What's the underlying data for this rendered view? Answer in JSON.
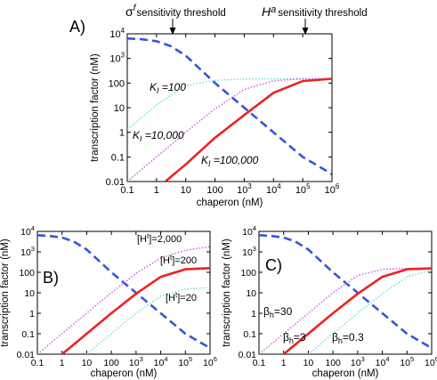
{
  "header": {
    "sigma_symbol": "σ",
    "sigma_sup": "f",
    "sigma_text": "sensitivity threshold",
    "h_symbol": "H",
    "h_sup": "a",
    "h_text": "sensitivity threshold"
  },
  "chart_data": [
    {
      "panel": "A)",
      "type": "line",
      "xscale": "log",
      "yscale": "log",
      "xlim": [
        0.1,
        1000000
      ],
      "ylim": [
        0.01,
        10000
      ],
      "xlabel": "chaperon (nM)",
      "ylabel": "transcription factor (nM)",
      "xticks": [
        "0.1",
        "1",
        "10",
        "100",
        "10^3",
        "10^4",
        "10^5",
        "10^6"
      ],
      "yticks": [
        "0.01",
        "0.1",
        "1",
        "10",
        "100",
        "10^3",
        "10^4"
      ],
      "series": [
        {
          "style": "dashed",
          "color": "#3355dd",
          "x": [
            0.1,
            0.3,
            1,
            3,
            10,
            100,
            1000,
            10000,
            100000,
            1000000
          ],
          "y": [
            6500,
            6000,
            5000,
            3200,
            1300,
            100,
            10,
            1,
            0.1,
            0.02
          ]
        },
        {
          "style": "dotted",
          "color": "#66e0d8",
          "x": [
            0.1,
            1,
            10,
            100,
            1000,
            10000,
            100000,
            1000000
          ],
          "y": [
            1.3,
            13,
            80,
            130,
            145,
            150,
            150,
            150
          ]
        },
        {
          "style": "dotted",
          "color": "#cc55dd",
          "x": [
            0.1,
            1,
            10,
            100,
            1000,
            10000,
            100000,
            1000000
          ],
          "y": [
            0.01,
            0.1,
            1,
            9,
            55,
            125,
            148,
            150
          ]
        },
        {
          "style": "solid",
          "color": "#ee2222",
          "x": [
            2,
            10,
            100,
            1000,
            10000,
            100000,
            1000000
          ],
          "y": [
            0.01,
            0.05,
            0.6,
            5,
            40,
            120,
            150
          ]
        }
      ],
      "annotations": [
        {
          "k": "K",
          "sub": "I",
          "text": " =100"
        },
        {
          "k": "K",
          "sub": "I",
          "text": " =10,000"
        },
        {
          "k": "K",
          "sub": "I",
          "text": " =100,000"
        }
      ]
    },
    {
      "panel": "B)",
      "type": "line",
      "xscale": "log",
      "yscale": "log",
      "xlim": [
        0.1,
        1000000
      ],
      "ylim": [
        0.01,
        10000
      ],
      "xlabel": "chaperon (nM)",
      "ylabel": "transcription factor (nM)",
      "xticks": [
        "0.1",
        "1",
        "10",
        "100",
        "10^3",
        "10^4",
        "10^5",
        "10^6"
      ],
      "yticks": [
        "0.01",
        "0.1",
        "1",
        "10",
        "100",
        "10^3",
        "10^4"
      ],
      "series": [
        {
          "style": "dashed",
          "color": "#3355dd",
          "x": [
            0.1,
            0.3,
            1,
            3,
            10,
            100,
            1000,
            10000,
            100000,
            1000000
          ],
          "y": [
            6500,
            6000,
            5000,
            3200,
            1300,
            100,
            10,
            1,
            0.1,
            0.02
          ]
        },
        {
          "style": "dotted",
          "color": "#cc55dd",
          "x": [
            0.1,
            1,
            10,
            100,
            1000,
            10000,
            100000,
            1000000
          ],
          "y": [
            0.01,
            0.1,
            1,
            10,
            90,
            500,
            1200,
            1800
          ]
        },
        {
          "style": "solid",
          "color": "#ee2222",
          "x": [
            1,
            10,
            100,
            1000,
            10000,
            100000,
            1000000
          ],
          "y": [
            0.01,
            0.1,
            1,
            9,
            60,
            140,
            160
          ]
        },
        {
          "style": "dotted",
          "color": "#66e0d8",
          "x": [
            10,
            100,
            1000,
            10000,
            100000,
            1000000
          ],
          "y": [
            0.01,
            0.1,
            1,
            7,
            15,
            18
          ]
        }
      ],
      "annotations": [
        {
          "pre": "[H",
          "sup": "t",
          "text": "]=2,000"
        },
        {
          "pre": "[H",
          "sup": "t",
          "text": "]=200"
        },
        {
          "pre": "[H",
          "sup": "t",
          "text": "]=20"
        }
      ]
    },
    {
      "panel": "C)",
      "type": "line",
      "xscale": "log",
      "yscale": "log",
      "xlim": [
        0.1,
        1000000
      ],
      "ylim": [
        0.01,
        10000
      ],
      "xlabel": "chaperon (nM)",
      "ylabel": "transcription factor (nM)",
      "xticks": [
        "0.1",
        "1",
        "10",
        "100",
        "10^3",
        "10^4",
        "10^5",
        "10^6"
      ],
      "yticks": [
        "0.01",
        "0.1",
        "1",
        "10",
        "100",
        "10^3",
        "10^4"
      ],
      "series": [
        {
          "style": "dashed",
          "color": "#3355dd",
          "x": [
            0.1,
            0.3,
            1,
            3,
            10,
            100,
            1000,
            10000,
            100000,
            1000000
          ],
          "y": [
            6500,
            6000,
            5000,
            3200,
            1300,
            100,
            10,
            1,
            0.1,
            0.02
          ]
        },
        {
          "style": "dotted",
          "color": "#cc55dd",
          "x": [
            0.1,
            1,
            10,
            100,
            1000,
            10000,
            100000,
            1000000
          ],
          "y": [
            0.01,
            0.1,
            1,
            10,
            70,
            140,
            155,
            160
          ]
        },
        {
          "style": "solid",
          "color": "#ee2222",
          "x": [
            1,
            10,
            100,
            1000,
            10000,
            100000,
            1000000
          ],
          "y": [
            0.01,
            0.1,
            1,
            9,
            60,
            140,
            155
          ]
        },
        {
          "style": "dotted",
          "color": "#66e0d8",
          "x": [
            10,
            100,
            1000,
            10000,
            100000,
            1000000
          ],
          "y": [
            0.01,
            0.1,
            1,
            9,
            60,
            130
          ]
        }
      ],
      "annotations": [
        {
          "pre": "β",
          "sub": "h",
          "text": "=30"
        },
        {
          "pre": "β",
          "sub": "h",
          "text": "=3"
        },
        {
          "pre": "β",
          "sub": "h",
          "text": "=0.3"
        }
      ]
    }
  ]
}
